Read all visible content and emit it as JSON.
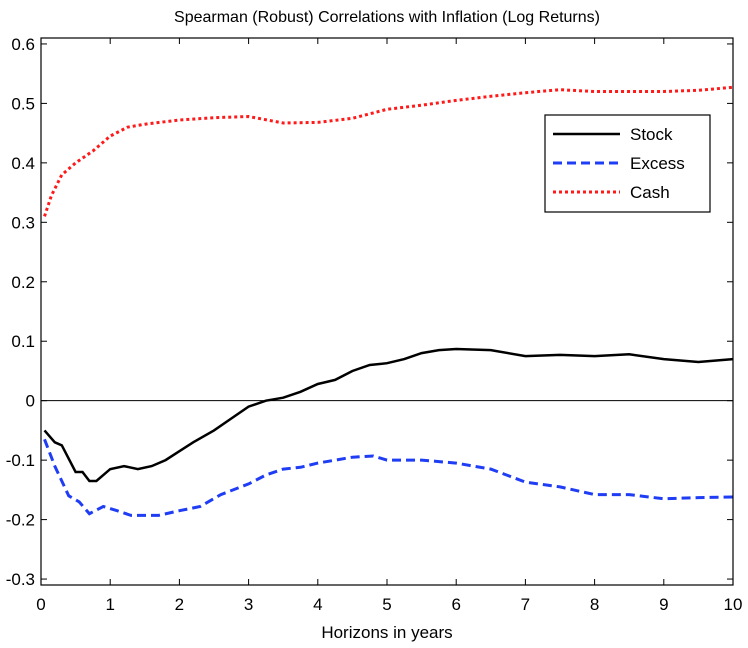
{
  "chart_data": {
    "type": "line",
    "title": "Spearman (Robust) Correlations with Inflation (Log Returns)",
    "xlabel": "Horizons in years",
    "ylabel": "",
    "xlim": [
      0,
      10
    ],
    "ylim": [
      -0.31,
      0.61
    ],
    "xticks": [
      0,
      1,
      2,
      3,
      4,
      5,
      6,
      7,
      8,
      9,
      10
    ],
    "yticks": [
      -0.3,
      -0.2,
      -0.1,
      0,
      0.1,
      0.2,
      0.3,
      0.4,
      0.5,
      0.6
    ],
    "ytick_labels": [
      "-0.3",
      "-0.2",
      "-0.1",
      "0",
      "0.1",
      "0.2",
      "0.3",
      "0.4",
      "0.5",
      "0.6"
    ],
    "zero_line": true,
    "legend_position": "top-right",
    "series": [
      {
        "name": "Stock",
        "color": "#000000",
        "style": "solid",
        "x": [
          0.05,
          0.2,
          0.3,
          0.5,
          0.6,
          0.7,
          0.8,
          1.0,
          1.2,
          1.4,
          1.6,
          1.8,
          2.0,
          2.2,
          2.5,
          2.75,
          3.0,
          3.25,
          3.5,
          3.75,
          4.0,
          4.25,
          4.5,
          4.75,
          5.0,
          5.25,
          5.5,
          5.75,
          6.0,
          6.5,
          7.0,
          7.5,
          8.0,
          8.5,
          9.0,
          9.5,
          10.0
        ],
        "y": [
          -0.05,
          -0.07,
          -0.075,
          -0.12,
          -0.12,
          -0.135,
          -0.135,
          -0.115,
          -0.11,
          -0.115,
          -0.11,
          -0.1,
          -0.085,
          -0.07,
          -0.05,
          -0.03,
          -0.01,
          0,
          0.005,
          0.015,
          0.028,
          0.035,
          0.05,
          0.06,
          0.063,
          0.07,
          0.08,
          0.085,
          0.087,
          0.085,
          0.075,
          0.077,
          0.075,
          0.078,
          0.07,
          0.065,
          0.07
        ]
      },
      {
        "name": "Excess",
        "color": "#1f3df5",
        "style": "dashed",
        "x": [
          0.05,
          0.2,
          0.4,
          0.55,
          0.7,
          0.9,
          1.1,
          1.3,
          1.7,
          2.0,
          2.3,
          2.6,
          3.0,
          3.25,
          3.5,
          3.75,
          4.0,
          4.5,
          4.8,
          5.0,
          5.5,
          6.0,
          6.5,
          7.0,
          7.5,
          8.0,
          8.5,
          9.0,
          9.5,
          10.0
        ],
        "y": [
          -0.065,
          -0.11,
          -0.16,
          -0.17,
          -0.19,
          -0.178,
          -0.185,
          -0.193,
          -0.193,
          -0.185,
          -0.178,
          -0.158,
          -0.14,
          -0.125,
          -0.115,
          -0.112,
          -0.105,
          -0.095,
          -0.093,
          -0.1,
          -0.1,
          -0.105,
          -0.115,
          -0.137,
          -0.145,
          -0.158,
          -0.158,
          -0.165,
          -0.163,
          -0.162
        ]
      },
      {
        "name": "Cash",
        "color": "#ff1a1a",
        "style": "dotted",
        "x": [
          0.05,
          0.15,
          0.3,
          0.5,
          0.75,
          1.0,
          1.25,
          1.5,
          2.0,
          2.5,
          3.0,
          3.5,
          4.0,
          4.5,
          5.0,
          5.5,
          6.0,
          6.5,
          7.0,
          7.5,
          8.0,
          8.5,
          9.0,
          9.5,
          10.0
        ],
        "y": [
          0.31,
          0.345,
          0.38,
          0.4,
          0.42,
          0.445,
          0.46,
          0.465,
          0.472,
          0.476,
          0.478,
          0.467,
          0.468,
          0.475,
          0.49,
          0.497,
          0.505,
          0.512,
          0.518,
          0.523,
          0.52,
          0.52,
          0.52,
          0.522,
          0.527
        ]
      }
    ]
  }
}
